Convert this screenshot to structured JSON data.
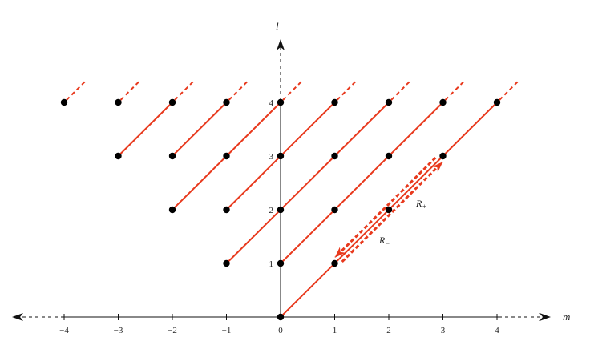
{
  "axes": {
    "x_title": "m",
    "y_title": "l",
    "x_ticks": [
      {
        "value": -4,
        "label": "−4"
      },
      {
        "value": -3,
        "label": "−3"
      },
      {
        "value": -2,
        "label": "−2"
      },
      {
        "value": -1,
        "label": "−1"
      },
      {
        "value": 0,
        "label": "0"
      },
      {
        "value": 1,
        "label": "1"
      },
      {
        "value": 2,
        "label": "2"
      },
      {
        "value": 3,
        "label": "3"
      },
      {
        "value": 4,
        "label": "4"
      }
    ],
    "y_ticks": [
      {
        "value": 1,
        "label": "1"
      },
      {
        "value": 2,
        "label": "2"
      },
      {
        "value": 3,
        "label": "3"
      },
      {
        "value": 4,
        "label": "4"
      }
    ]
  },
  "points": [
    {
      "m": 0,
      "l": 0
    },
    {
      "m": -1,
      "l": 1
    },
    {
      "m": 0,
      "l": 1
    },
    {
      "m": 1,
      "l": 1
    },
    {
      "m": -2,
      "l": 2
    },
    {
      "m": -1,
      "l": 2
    },
    {
      "m": 0,
      "l": 2
    },
    {
      "m": 1,
      "l": 2
    },
    {
      "m": 2,
      "l": 2
    },
    {
      "m": -3,
      "l": 3
    },
    {
      "m": -2,
      "l": 3
    },
    {
      "m": -1,
      "l": 3
    },
    {
      "m": 0,
      "l": 3
    },
    {
      "m": 1,
      "l": 3
    },
    {
      "m": 2,
      "l": 3
    },
    {
      "m": 3,
      "l": 3
    },
    {
      "m": -4,
      "l": 4
    },
    {
      "m": -3,
      "l": 4
    },
    {
      "m": -2,
      "l": 4
    },
    {
      "m": -1,
      "l": 4
    },
    {
      "m": 0,
      "l": 4
    },
    {
      "m": 1,
      "l": 4
    },
    {
      "m": 2,
      "l": 4
    },
    {
      "m": 3,
      "l": 4
    },
    {
      "m": 4,
      "l": 4
    }
  ],
  "ladders": [
    {
      "from": {
        "m": 0,
        "l": 0
      },
      "to": {
        "m": 4,
        "l": 4
      }
    },
    {
      "from": {
        "m": -1,
        "l": 1
      },
      "to": {
        "m": 2,
        "l": 4
      }
    },
    {
      "from": {
        "m": 0,
        "l": 1
      },
      "to": {
        "m": 3,
        "l": 4
      }
    },
    {
      "from": {
        "m": -2,
        "l": 2
      },
      "to": {
        "m": 0,
        "l": 4
      }
    },
    {
      "from": {
        "m": -1,
        "l": 2
      },
      "to": {
        "m": 1,
        "l": 4
      }
    },
    {
      "from": {
        "m": -3,
        "l": 3
      },
      "to": {
        "m": -2,
        "l": 4
      }
    },
    {
      "from": {
        "m": -2,
        "l": 3
      },
      "to": {
        "m": -1,
        "l": 4
      }
    }
  ],
  "raising_operator": {
    "label": "R",
    "subscript": "+",
    "from": {
      "m": 1,
      "l": 1
    },
    "to": {
      "m": 3,
      "l": 3
    }
  },
  "lowering_operator": {
    "label": "R",
    "subscript": "−",
    "from": {
      "m": 3,
      "l": 3
    },
    "to": {
      "m": 1,
      "l": 1
    }
  },
  "colors": {
    "ladder": "#e8391d",
    "axis": "#111111",
    "point": "#000000"
  }
}
